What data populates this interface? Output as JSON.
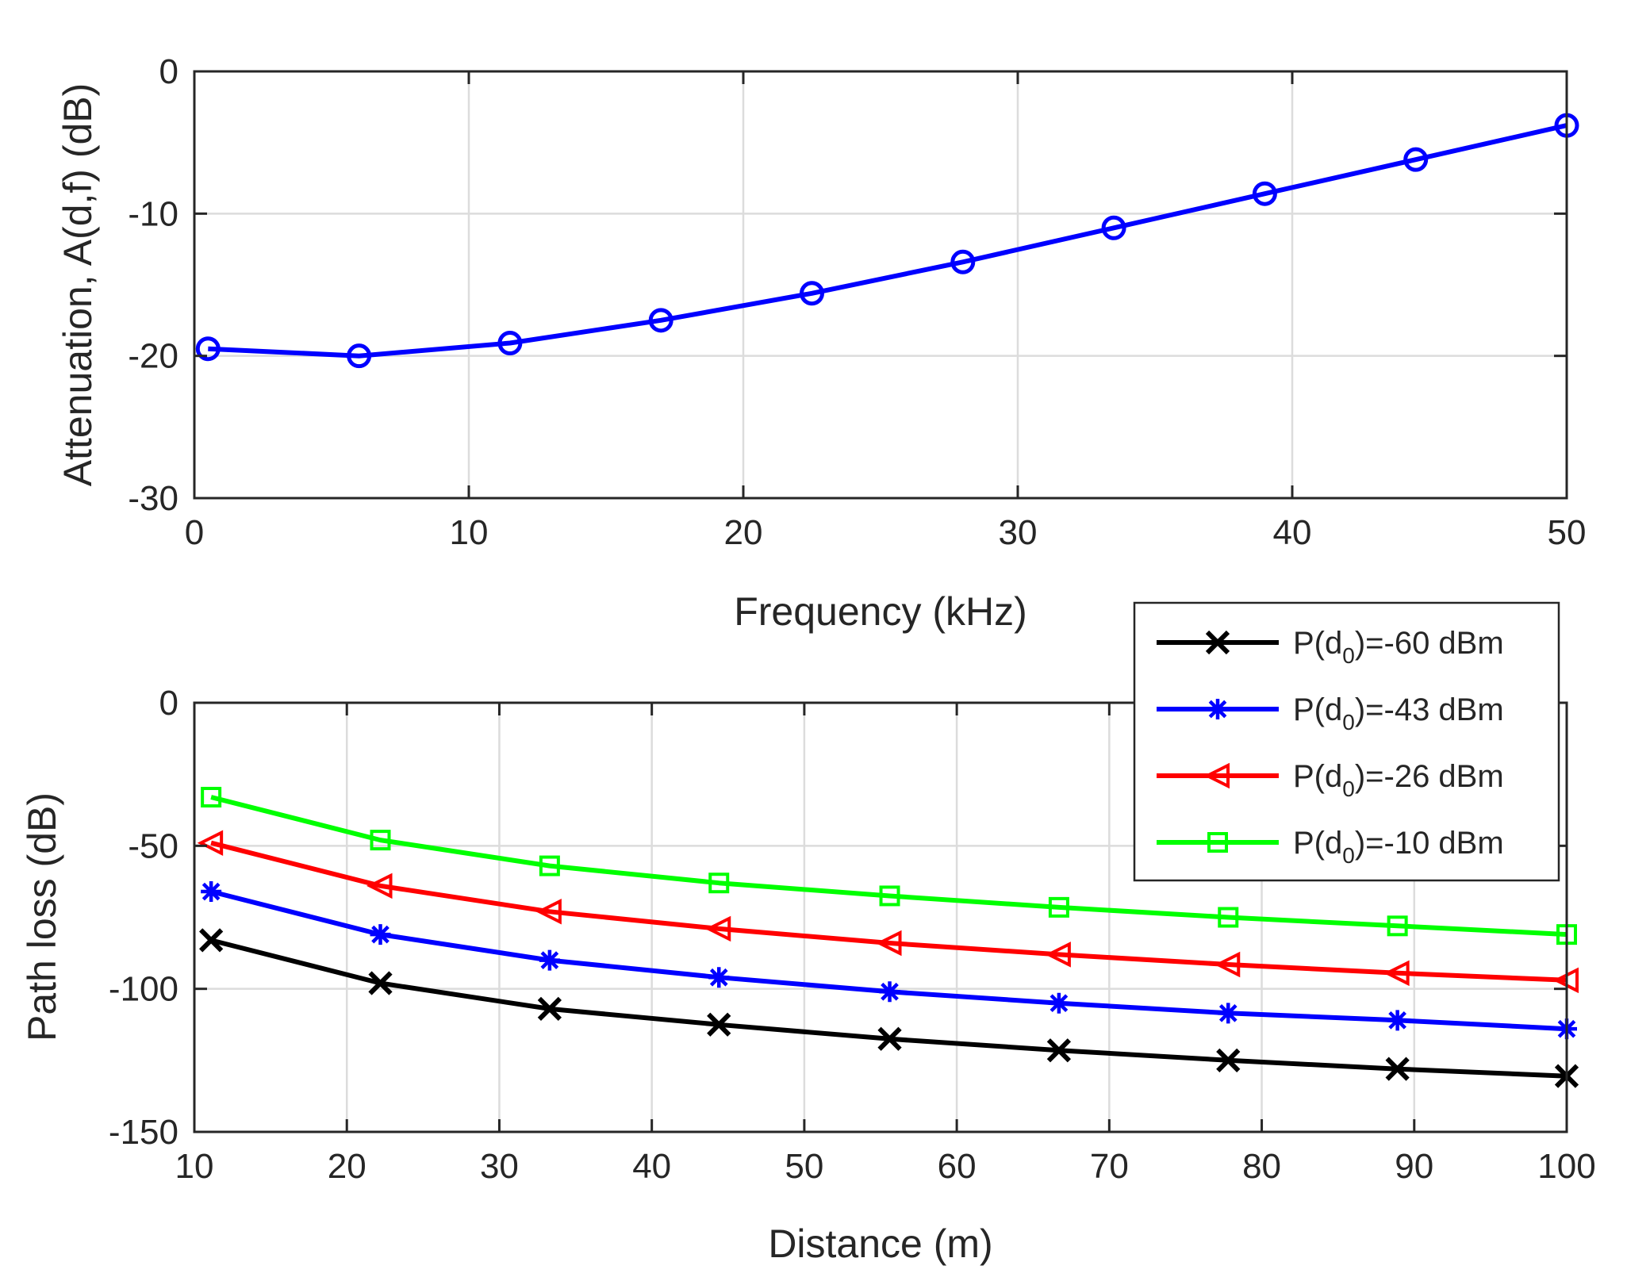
{
  "chart_data": [
    {
      "type": "line",
      "title": "",
      "xlabel": "Frequency (kHz)",
      "ylabel": "Attenuation, A(d,f) (dB)",
      "xlim": [
        0,
        50
      ],
      "ylim": [
        -30,
        0
      ],
      "xticks": [
        "0",
        "10",
        "20",
        "30",
        "40",
        "50"
      ],
      "yticks": [
        "0",
        "-10",
        "-20",
        "-30"
      ],
      "grid": true,
      "series": [
        {
          "name": "Attenuation",
          "color": "#0000ff",
          "marker": "circle",
          "x": [
            0.5,
            6.0,
            11.5,
            17.0,
            22.5,
            28.0,
            33.5,
            39.0,
            44.5,
            50.0
          ],
          "y": [
            -19.5,
            -20.0,
            -19.1,
            -17.5,
            -15.6,
            -13.4,
            -11.0,
            -8.6,
            -6.2,
            -3.8
          ]
        }
      ]
    },
    {
      "type": "line",
      "title": "",
      "xlabel": "Distance (m)",
      "ylabel": "Path loss (dB)",
      "xlim": [
        10,
        100
      ],
      "ylim": [
        -150,
        0
      ],
      "xticks": [
        "10",
        "20",
        "30",
        "40",
        "50",
        "60",
        "70",
        "80",
        "90",
        "100"
      ],
      "yticks": [
        "0",
        "-50",
        "-100",
        "-150"
      ],
      "grid": true,
      "legend_position": "top-right",
      "x": [
        11.1,
        22.2,
        33.3,
        44.4,
        55.6,
        66.7,
        77.8,
        88.9,
        100
      ],
      "series": [
        {
          "name": "P(d0)=-60 dBm",
          "label_prefix": "P(d",
          "label_sub": "0",
          "label_suffix": ")=-60 dBm",
          "color": "#000000",
          "marker": "x",
          "y": [
            -83,
            -98,
            -107,
            -112.5,
            -117.5,
            -121.5,
            -125,
            -128,
            -130.5
          ]
        },
        {
          "name": "P(d0)=-43 dBm",
          "label_prefix": "P(d",
          "label_sub": "0",
          "label_suffix": ")=-43 dBm",
          "color": "#0000ff",
          "marker": "asterisk",
          "y": [
            -66,
            -81,
            -90,
            -96,
            -101,
            -105,
            -108.5,
            -111,
            -114
          ]
        },
        {
          "name": "P(d0)=-26 dBm",
          "label_prefix": "P(d",
          "label_sub": "0",
          "label_suffix": ")=-26 dBm",
          "color": "#ff0000",
          "marker": "triangle-left",
          "y": [
            -49,
            -64,
            -73,
            -79,
            -84,
            -88,
            -91.5,
            -94.5,
            -97
          ]
        },
        {
          "name": "P(d0)=-10 dBm",
          "label_prefix": "P(d",
          "label_sub": "0",
          "label_suffix": ")=-10 dBm",
          "color": "#00ff00",
          "marker": "square",
          "y": [
            -33,
            -48,
            -57,
            -63,
            -67.5,
            -71.5,
            -75,
            -78,
            -81
          ]
        }
      ]
    }
  ]
}
